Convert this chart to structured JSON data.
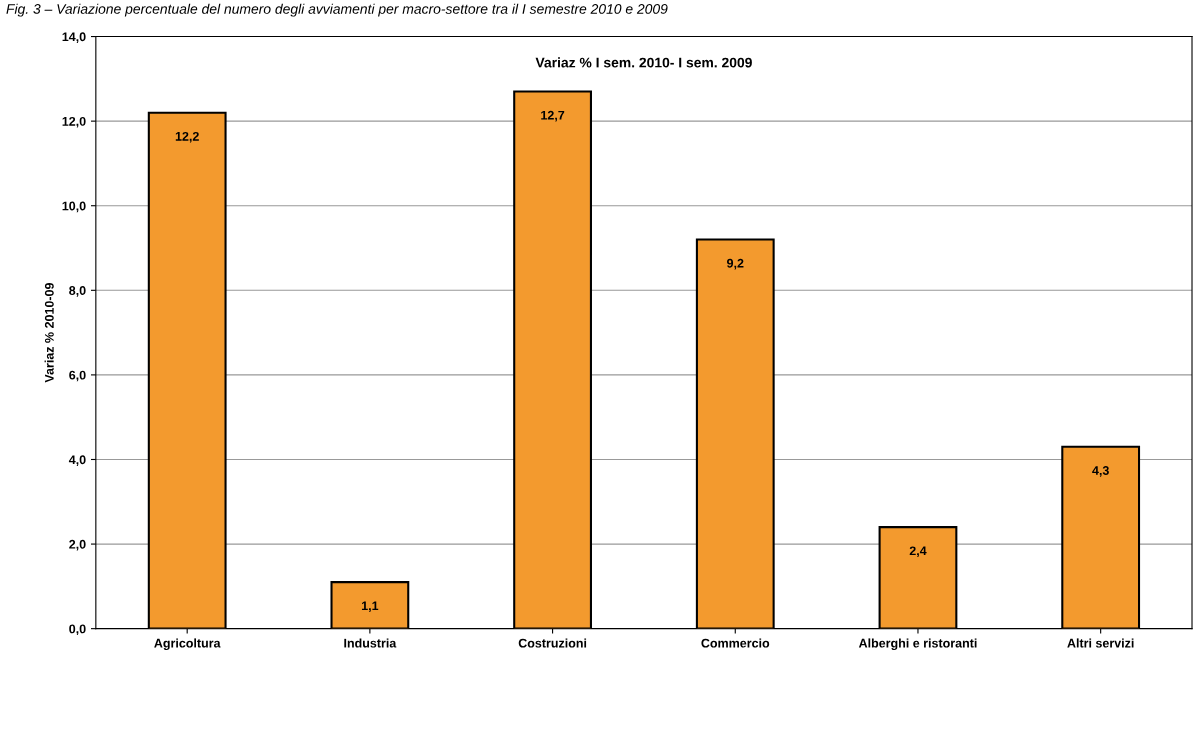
{
  "chart_data": {
    "type": "bar",
    "title": "Fig. 3 – Variazione percentuale del numero degli avviamenti per macro-settore tra il I semestre 2010 e 2009",
    "subtitle": "Variaz % I sem. 2010- I sem. 2009",
    "ylabel": "Variaz % 2010-09",
    "categories": [
      "Agricoltura",
      "Industria",
      "Costruzioni",
      "Commercio",
      "Alberghi e ristoranti",
      "Altri servizi"
    ],
    "values": [
      12.2,
      1.1,
      12.7,
      9.2,
      2.4,
      4.3
    ],
    "color": "#f39a2e",
    "value_labels": [
      "12,2",
      "1,1",
      "12,7",
      "9,2",
      "2,4",
      "4,3"
    ],
    "ylim": [
      0,
      14
    ],
    "yticks": [
      {
        "value": 0,
        "label": "0,0"
      },
      {
        "value": 2,
        "label": "2,0"
      },
      {
        "value": 4,
        "label": "4,0"
      },
      {
        "value": 6,
        "label": "6,0"
      },
      {
        "value": 8,
        "label": "8,0"
      },
      {
        "value": 10,
        "label": "10,0"
      },
      {
        "value": 12,
        "label": "12,0"
      },
      {
        "value": 14,
        "label": "14,0"
      }
    ],
    "grid": "y",
    "legend": false
  }
}
